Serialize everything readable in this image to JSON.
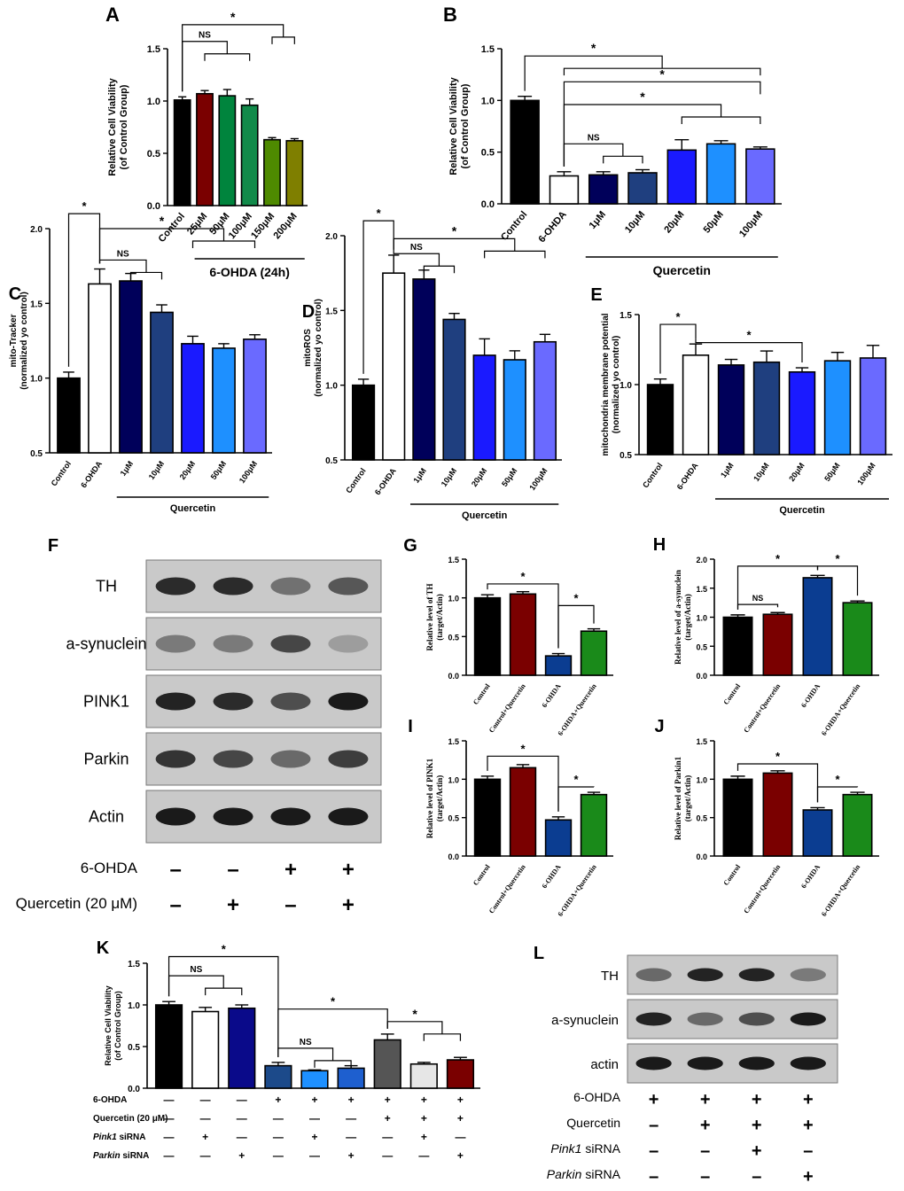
{
  "blots_F": {
    "panel_letter": "F",
    "rows": [
      "TH",
      "a-synuclein",
      "PINK1",
      "Parkin",
      "Actin"
    ],
    "conditions": [
      {
        "label": "6-OHDA",
        "marks": [
          "-",
          "-",
          "+",
          "+"
        ]
      },
      {
        "label": "Quercetin (20 μM)",
        "marks": [
          "-",
          "+",
          "-",
          "+"
        ]
      }
    ]
  },
  "blots_L": {
    "panel_letter": "L",
    "rows": [
      "TH",
      "a-synuclein",
      "actin"
    ],
    "conditions": [
      {
        "label": "6-OHDA",
        "marks": [
          "+",
          "+",
          "+",
          "+"
        ]
      },
      {
        "label": "Quercetin",
        "marks": [
          "-",
          "+",
          "+",
          "+"
        ]
      },
      {
        "label": "Pink1 siRNA",
        "marks": [
          "-",
          "-",
          "+",
          "-"
        ]
      },
      {
        "label": "Parkin siRNA",
        "marks": [
          "-",
          "-",
          "-",
          "+"
        ]
      }
    ]
  },
  "chart_data": [
    {
      "panel": "A",
      "type": "bar",
      "ylabel": "Relative Cell Viability\n(of Control Group)",
      "ylim": [
        0,
        1.5
      ],
      "yticks": [
        "0.0",
        "0.5",
        "1.0",
        "1.5"
      ],
      "categories": [
        "Control",
        "25μM",
        "50μM",
        "100μM",
        "150μM",
        "200μM"
      ],
      "values": [
        1.01,
        1.07,
        1.05,
        0.96,
        0.63,
        0.62
      ],
      "errors": [
        0.03,
        0.03,
        0.06,
        0.06,
        0.02,
        0.02
      ],
      "colors": [
        "#000000",
        "#7a0000",
        "#00843d",
        "#118a4a",
        "#4e8a00",
        "#7f7f00"
      ],
      "group_label": "6-OHDA (24h)",
      "sig": [
        {
          "text": "NS",
          "type": "nested",
          "from": 0,
          "to": [
            1,
            3
          ],
          "level": 1.57
        },
        {
          "text": "*",
          "type": "nested",
          "from": 0,
          "to": [
            4,
            5
          ],
          "level": 1.73
        }
      ]
    },
    {
      "panel": "B",
      "type": "bar",
      "ylabel": "Relative Cell Viability\n(of Control Group)",
      "ylim": [
        0,
        1.5
      ],
      "yticks": [
        "0.0",
        "0.5",
        "1.0",
        "1.5"
      ],
      "categories": [
        "Control",
        "6-OHDA",
        "1μM",
        "10μM",
        "20μM",
        "50μM",
        "100μM"
      ],
      "values": [
        1.0,
        0.27,
        0.28,
        0.3,
        0.52,
        0.58,
        0.53
      ],
      "errors": [
        0.04,
        0.04,
        0.03,
        0.03,
        0.1,
        0.03,
        0.02
      ],
      "colors": [
        "#000000",
        "#ffffff",
        "#00005a",
        "#1f3f7f",
        "#1a1aff",
        "#1e90ff",
        "#6a6aff"
      ],
      "group_label": "Quercetin",
      "sig": [
        {
          "text": "*",
          "type": "nested",
          "from": 0,
          "to": [
            1,
            6
          ],
          "level": 1.43
        },
        {
          "text": "*",
          "type": "nested",
          "from": 1,
          "to": [
            6,
            6
          ],
          "level": 1.18
        },
        {
          "text": "*",
          "type": "nested",
          "from": 1,
          "to": [
            4,
            6
          ],
          "level": 0.96
        },
        {
          "text": "NS",
          "type": "nested",
          "from": 1,
          "to": [
            2,
            3
          ],
          "level": 0.58
        }
      ]
    },
    {
      "panel": "C",
      "type": "bar",
      "ylabel": "mito-Tracker\n(normalized yo control)",
      "ylim": [
        0.5,
        2.0
      ],
      "yticks": [
        "0.5",
        "1.0",
        "1.5",
        "2.0"
      ],
      "categories": [
        "Control",
        "6-OHDA",
        "1μM",
        "10μM",
        "20μM",
        "50μM",
        "100μM"
      ],
      "values": [
        1.0,
        1.63,
        1.65,
        1.44,
        1.23,
        1.2,
        1.26
      ],
      "errors": [
        0.04,
        0.1,
        0.05,
        0.05,
        0.05,
        0.03,
        0.03
      ],
      "colors": [
        "#000000",
        "#ffffff",
        "#00005a",
        "#1f3f7f",
        "#1a1aff",
        "#1e90ff",
        "#6a6aff"
      ],
      "group_label": "Quercetin",
      "sig": [
        {
          "text": "*",
          "type": "pair",
          "from": 0,
          "to": [
            1,
            1
          ],
          "level": 2.1
        },
        {
          "text": "NS",
          "type": "nested",
          "from": 1,
          "to": [
            2,
            3
          ],
          "level": 1.79
        },
        {
          "text": "*",
          "type": "nested",
          "from": 1,
          "to": [
            4,
            6
          ],
          "level": 2.0
        }
      ]
    },
    {
      "panel": "D",
      "type": "bar",
      "ylabel": "mitoROS\n(normalized yo control)",
      "ylim": [
        0.5,
        2.0
      ],
      "yticks": [
        "0.5",
        "1.0",
        "1.5",
        "2.0"
      ],
      "categories": [
        "Control",
        "6-OHDA",
        "1μM",
        "10μM",
        "20μM",
        "50μM",
        "100μM"
      ],
      "values": [
        1.0,
        1.75,
        1.71,
        1.44,
        1.2,
        1.17,
        1.29
      ],
      "errors": [
        0.04,
        0.12,
        0.06,
        0.04,
        0.11,
        0.06,
        0.05
      ],
      "colors": [
        "#000000",
        "#ffffff",
        "#00005a",
        "#1f3f7f",
        "#1a1aff",
        "#1e90ff",
        "#6a6aff"
      ],
      "group_label": "Quercetin",
      "sig": [
        {
          "text": "*",
          "type": "pair",
          "from": 0,
          "to": [
            1,
            1
          ],
          "level": 2.1
        },
        {
          "text": "NS",
          "type": "nested",
          "from": 1,
          "to": [
            2,
            3
          ],
          "level": 1.88
        },
        {
          "text": "*",
          "type": "nested",
          "from": 1,
          "to": [
            4,
            6
          ],
          "level": 1.98
        }
      ]
    },
    {
      "panel": "E",
      "type": "bar",
      "ylabel": "mitochondria membrane potential\n(normalized yo control)",
      "ylim": [
        0.5,
        1.5
      ],
      "yticks": [
        "0.5",
        "1.0",
        "1.5"
      ],
      "categories": [
        "Control",
        "6-OHDA",
        "1μM",
        "10μM",
        "20μM",
        "50μM",
        "100μM"
      ],
      "values": [
        1.0,
        1.21,
        1.14,
        1.16,
        1.09,
        1.17,
        1.19
      ],
      "errors": [
        0.04,
        0.08,
        0.04,
        0.08,
        0.03,
        0.06,
        0.09
      ],
      "colors": [
        "#000000",
        "#ffffff",
        "#00005a",
        "#1f3f7f",
        "#1a1aff",
        "#1e90ff",
        "#6a6aff"
      ],
      "group_label": "Quercetin",
      "sig": [
        {
          "text": "*",
          "type": "pair",
          "from": 0,
          "to": [
            1,
            1
          ],
          "level": 1.43
        },
        {
          "text": "*",
          "type": "pair",
          "from": 1,
          "to": [
            4,
            4
          ],
          "level": 1.3
        }
      ]
    },
    {
      "panel": "G",
      "type": "bar",
      "ylabel": "Relative level of TH\n(target/Actin)",
      "ylim": [
        0,
        1.5
      ],
      "yticks": [
        "0.0",
        "0.5",
        "1.0",
        "1.5"
      ],
      "categories": [
        "Control",
        "Control+Quercetin",
        "6-OHDA",
        "6-OHDA+Quercetin"
      ],
      "values": [
        1.0,
        1.05,
        0.25,
        0.57
      ],
      "errors": [
        0.04,
        0.03,
        0.03,
        0.03
      ],
      "colors": [
        "#000000",
        "#7a0000",
        "#0b3d91",
        "#1a8a1a"
      ],
      "sig": [
        {
          "text": "*",
          "type": "pair",
          "from": 0,
          "to": [
            2,
            2
          ],
          "level": 1.18
        },
        {
          "text": "*",
          "type": "pair",
          "from": 2,
          "to": [
            3,
            3
          ],
          "level": 0.9
        }
      ]
    },
    {
      "panel": "H",
      "type": "bar",
      "ylabel": "Relative level of a-synuclein\n(target/Actin)",
      "ylim": [
        0,
        2.0
      ],
      "yticks": [
        "0.0",
        "0.5",
        "1.0",
        "1.5",
        "2.0"
      ],
      "categories": [
        "Control",
        "Control+Quercetin",
        "6-OHDA",
        "6-OHDA+Quercetin"
      ],
      "values": [
        1.0,
        1.05,
        1.68,
        1.25
      ],
      "errors": [
        0.04,
        0.03,
        0.04,
        0.03
      ],
      "colors": [
        "#000000",
        "#7a0000",
        "#0b3d91",
        "#1a8a1a"
      ],
      "sig": [
        {
          "text": "NS",
          "type": "pair",
          "from": 0,
          "to": [
            1,
            1
          ],
          "level": 1.22
        },
        {
          "text": "*",
          "type": "pair",
          "from": 0,
          "to": [
            2,
            2
          ],
          "level": 1.88
        },
        {
          "text": "*",
          "type": "pair",
          "from": 2,
          "to": [
            3,
            3
          ],
          "level": 1.88
        }
      ]
    },
    {
      "panel": "I",
      "type": "bar",
      "ylabel": "Relative level of PINK1\n(target/Actin)",
      "ylim": [
        0,
        1.5
      ],
      "yticks": [
        "0.0",
        "0.5",
        "1.0",
        "1.5"
      ],
      "categories": [
        "Control",
        "Control+Quercetin",
        "6-OHDA",
        "6-OHDA+Quercetin"
      ],
      "values": [
        1.0,
        1.15,
        0.47,
        0.8
      ],
      "errors": [
        0.04,
        0.04,
        0.04,
        0.03
      ],
      "colors": [
        "#000000",
        "#7a0000",
        "#0b3d91",
        "#1a8a1a"
      ],
      "sig": [
        {
          "text": "*",
          "type": "pair",
          "from": 0,
          "to": [
            2,
            2
          ],
          "level": 1.3
        },
        {
          "text": "*",
          "type": "pair",
          "from": 2,
          "to": [
            3,
            3
          ],
          "level": 0.9
        }
      ]
    },
    {
      "panel": "J",
      "type": "bar",
      "ylabel": "Relative level of Parkin1\n(target/Actin)",
      "ylim": [
        0,
        1.5
      ],
      "yticks": [
        "0.0",
        "0.5",
        "1.0",
        "1.5"
      ],
      "categories": [
        "Control",
        "Control+Quercetin",
        "6-OHDA",
        "6-OHDA+Quercetin"
      ],
      "values": [
        1.0,
        1.08,
        0.6,
        0.8
      ],
      "errors": [
        0.04,
        0.03,
        0.03,
        0.03
      ],
      "colors": [
        "#000000",
        "#7a0000",
        "#0b3d91",
        "#1a8a1a"
      ],
      "sig": [
        {
          "text": "*",
          "type": "pair",
          "from": 0,
          "to": [
            2,
            2
          ],
          "level": 1.2
        },
        {
          "text": "*",
          "type": "pair",
          "from": 2,
          "to": [
            3,
            3
          ],
          "level": 0.9
        }
      ]
    },
    {
      "panel": "K",
      "type": "bar",
      "ylabel": "Relative Cell Viability\n(of Control Group)",
      "ylim": [
        0,
        1.5
      ],
      "yticks": [
        "0.0",
        "0.5",
        "1.0",
        "1.5"
      ],
      "values": [
        1.0,
        0.92,
        0.96,
        0.27,
        0.21,
        0.24,
        0.58,
        0.29,
        0.34
      ],
      "errors": [
        0.04,
        0.05,
        0.04,
        0.04,
        0.01,
        0.03,
        0.07,
        0.02,
        0.03
      ],
      "colors": [
        "#000000",
        "#ffffff",
        "#0a0a8a",
        "#1c4a8a",
        "#1e90ff",
        "#1e5fcf",
        "#555555",
        "#e6e6e6",
        "#7a0000"
      ],
      "conditions": [
        {
          "label": "6-OHDA",
          "marks": [
            "—",
            "—",
            "—",
            "+",
            "+",
            "+",
            "+",
            "+",
            "+"
          ]
        },
        {
          "label": "Quercetin (20 μM)",
          "marks": [
            "—",
            "—",
            "—",
            "—",
            "—",
            "—",
            "+",
            "+",
            "+"
          ]
        },
        {
          "label": "Pink1 siRNA",
          "marks": [
            "—",
            "+",
            "—",
            "—",
            "+",
            "—",
            "—",
            "+",
            "—"
          ]
        },
        {
          "label": "Parkin siRNA",
          "marks": [
            "—",
            "—",
            "+",
            "—",
            "—",
            "+",
            "—",
            "—",
            "+"
          ]
        }
      ],
      "sig": [
        {
          "text": "NS",
          "type": "nested",
          "from": 0,
          "to": [
            1,
            2
          ],
          "level": 1.35
        },
        {
          "text": "*",
          "type": "pair",
          "from": 0,
          "to": [
            3,
            3
          ],
          "level": 1.58
        },
        {
          "text": "NS",
          "type": "nested",
          "from": 3,
          "to": [
            4,
            5
          ],
          "level": 0.48
        },
        {
          "text": "*",
          "type": "pair",
          "from": 3,
          "to": [
            6,
            6
          ],
          "level": 0.95
        },
        {
          "text": "*",
          "type": "nested",
          "from": 6,
          "to": [
            7,
            8
          ],
          "level": 0.8
        }
      ]
    }
  ]
}
